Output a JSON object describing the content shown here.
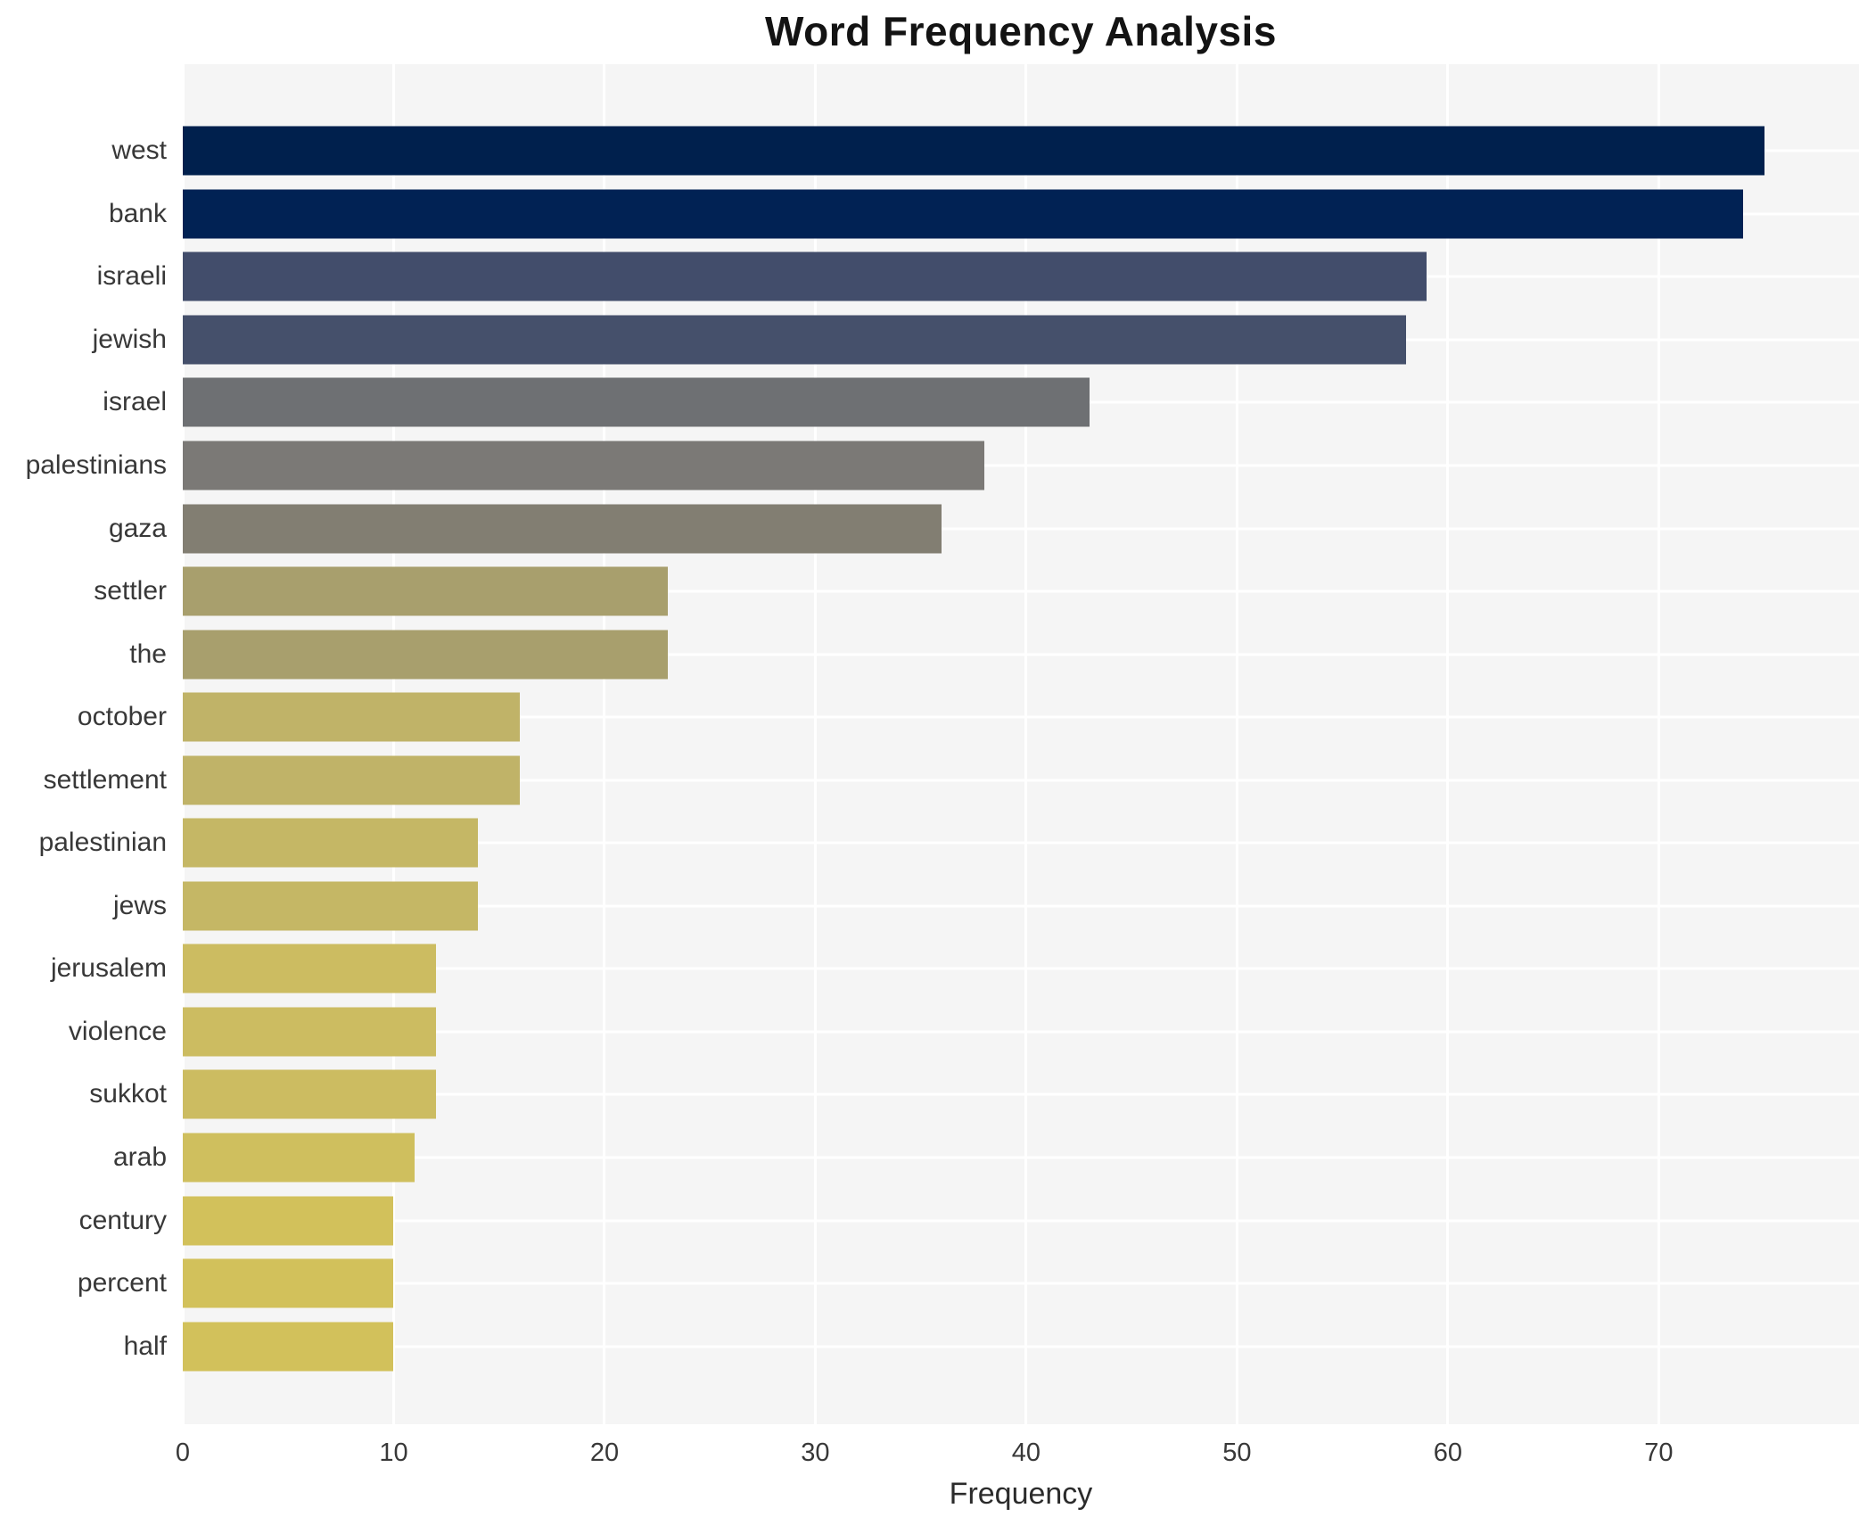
{
  "chart_data": {
    "type": "bar",
    "orientation": "horizontal",
    "title": "Word Frequency Analysis",
    "xlabel": "Frequency",
    "ylabel": "",
    "categories": [
      "west",
      "bank",
      "israeli",
      "jewish",
      "israel",
      "palestinians",
      "gaza",
      "settler",
      "the",
      "october",
      "settlement",
      "palestinian",
      "jews",
      "jerusalem",
      "violence",
      "sukkot",
      "arab",
      "century",
      "percent",
      "half"
    ],
    "values": [
      75,
      74,
      59,
      58,
      43,
      38,
      36,
      23,
      23,
      16,
      16,
      14,
      14,
      12,
      12,
      12,
      11,
      10,
      10,
      10
    ],
    "bar_colors": [
      "#00204d",
      "#012254",
      "#424d6b",
      "#45506b",
      "#6e7073",
      "#7b7976",
      "#827e72",
      "#a89f6d",
      "#a89f6d",
      "#c0b368",
      "#c0b368",
      "#c5b765",
      "#c5b765",
      "#ccbc61",
      "#ccbc61",
      "#ccbc61",
      "#cfbf5e",
      "#d2c15b",
      "#d2c15b",
      "#d2c15b"
    ],
    "xticks": [
      0,
      10,
      20,
      30,
      40,
      50,
      60,
      70
    ],
    "xlim": [
      0,
      79.5
    ],
    "grid": true,
    "legend": false
  },
  "style": {
    "plot_bg": "#f5f5f5",
    "grid_color": "#ffffff",
    "text_color": "#383838",
    "title_color": "#131313",
    "page_bg": "#ffffff"
  }
}
